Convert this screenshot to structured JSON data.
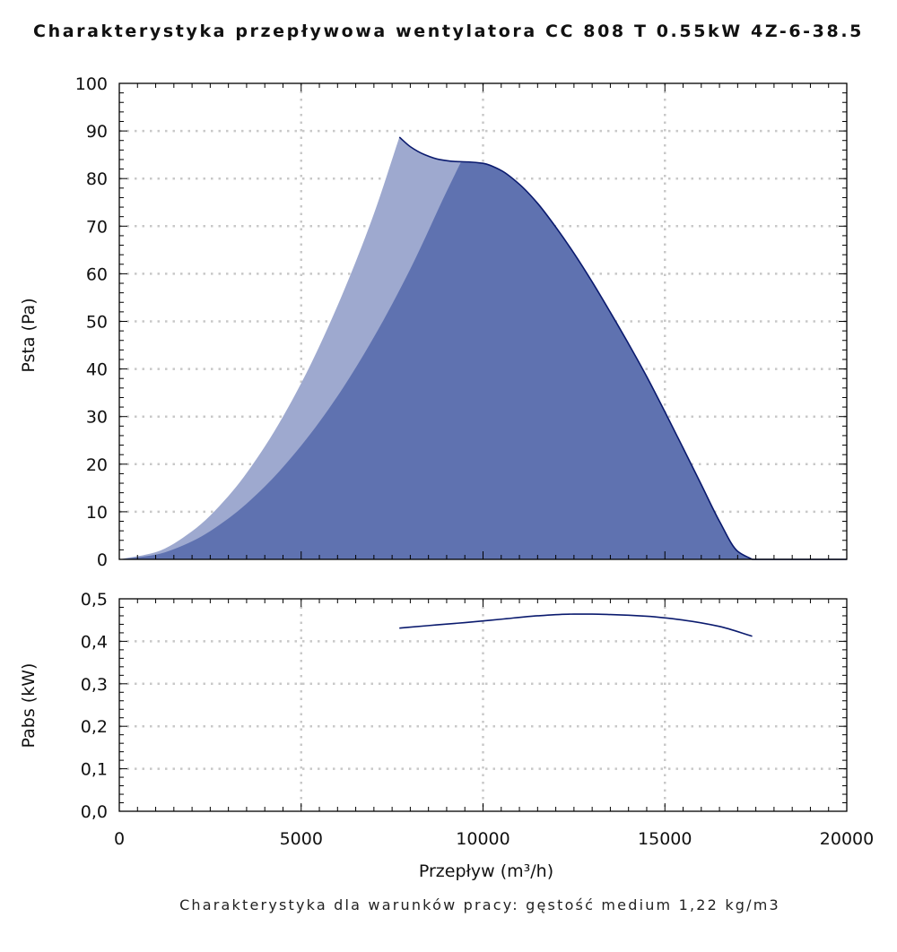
{
  "title": "Charakterystyka przepływowa wentylatora CC 808 T 0.55kW 4Z-6-38.5",
  "footnote": "Charakterystyka dla warunków pracy: gęstość medium 1,22 kg/m3",
  "colors": {
    "dark_fill": "#5f72b0",
    "light_fill": "#9ea9cf",
    "curve": "#0a1a6e",
    "grid": "#c8c8c8"
  },
  "chart_data": [
    {
      "type": "area",
      "xlabel": "Przepływ (m³/h)",
      "ylabel": "Psta (Pa)",
      "xlim": [
        0,
        20000
      ],
      "ylim": [
        0,
        100
      ],
      "yticks": [
        "0",
        "10",
        "20",
        "30",
        "40",
        "50",
        "60",
        "70",
        "80",
        "90",
        "100"
      ],
      "grid": true,
      "series": [
        {
          "role": "pressure-curve",
          "x": [
            7700,
            8000,
            8400,
            8800,
            9200,
            9600,
            10000,
            10500,
            11000,
            11500,
            12000,
            12500,
            13000,
            13500,
            14000,
            14500,
            15000,
            15500,
            16000,
            16500,
            17000,
            17400
          ],
          "y": [
            88.7,
            86.7,
            85,
            84,
            83.6,
            83.5,
            83.2,
            81.7,
            78.8,
            74.8,
            69.8,
            64.3,
            58.3,
            51.9,
            45.3,
            38.4,
            31,
            23.4,
            15.7,
            8,
            1.7,
            0
          ]
        },
        {
          "role": "light-boundary",
          "x": [
            0,
            1000,
            2000,
            3000,
            4000,
            5000,
            6000,
            7000,
            7700
          ],
          "y": [
            0,
            1.5,
            5.9,
            13.3,
            23.7,
            37,
            53.3,
            72.6,
            88.7
          ]
        },
        {
          "role": "dark-boundary",
          "x": [
            0,
            1000,
            2000,
            3000,
            4000,
            5000,
            6000,
            7000,
            8000,
            9000,
            9400
          ],
          "y": [
            0,
            1,
            3.8,
            8.6,
            15.3,
            23.9,
            34.3,
            46.7,
            61,
            77.3,
            83.6
          ]
        }
      ]
    },
    {
      "type": "line",
      "xlabel": "Przepływ (m³/h)",
      "ylabel": "Pabs (kW)",
      "xlim": [
        0,
        20000
      ],
      "ylim": [
        0,
        0.5
      ],
      "xticks": [
        "0",
        "5000",
        "10000",
        "15000",
        "20000"
      ],
      "yticks": [
        "0,0",
        "0,1",
        "0,2",
        "0,3",
        "0,4",
        "0,5"
      ],
      "grid": true,
      "series": [
        {
          "role": "power-curve",
          "x": [
            7700,
            8500,
            9500,
            10500,
            11500,
            12500,
            13000,
            13500,
            14500,
            15500,
            16500,
            17400
          ],
          "y": [
            0.431,
            0.437,
            0.444,
            0.452,
            0.46,
            0.464,
            0.464,
            0.463,
            0.459,
            0.45,
            0.435,
            0.412
          ]
        }
      ]
    }
  ]
}
